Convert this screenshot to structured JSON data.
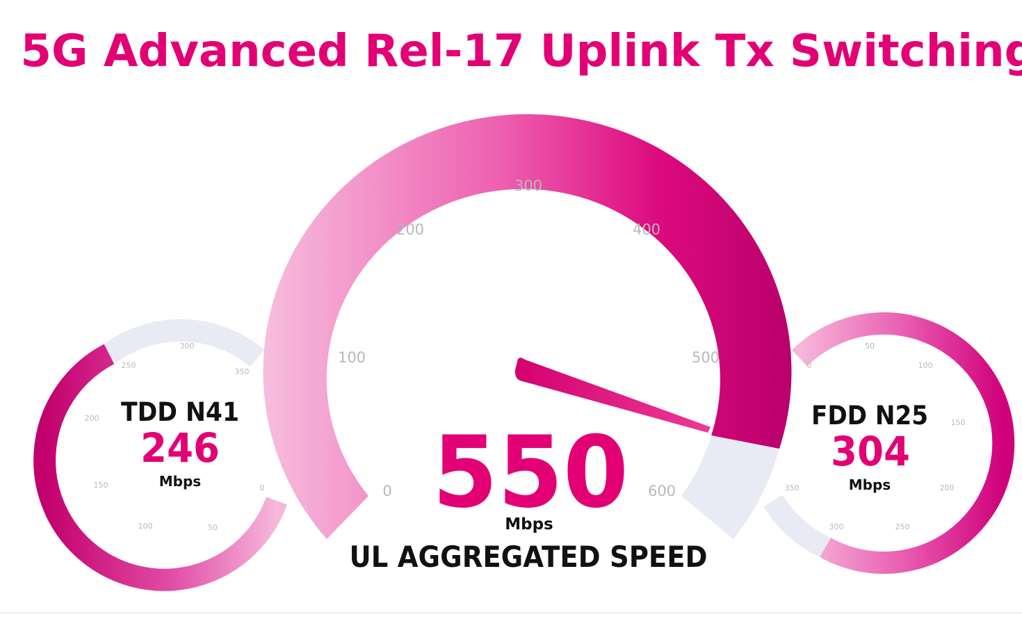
{
  "title": "5G Advanced Rel-17 Uplink Tx Switching",
  "colors": {
    "magenta": "#e20074",
    "magenta_dark": "#c2006c",
    "pink_light": "#f5b6d8",
    "track": "#e8eaf4",
    "tick": "#b8b8b8",
    "text_dark": "#111111"
  },
  "main_gauge": {
    "value": "550",
    "unit": "Mbps",
    "caption": "UL AGGREGATED SPEED",
    "min": 0,
    "max": 600,
    "reading": 550,
    "ticks": [
      "0",
      "100",
      "200",
      "300",
      "400",
      "500",
      "600"
    ]
  },
  "left_gauge": {
    "name": "TDD N41",
    "value": "246",
    "unit": "Mbps",
    "ticks": [
      "0",
      "50",
      "100",
      "150",
      "200",
      "250",
      "300",
      "350"
    ]
  },
  "right_gauge": {
    "name": "FDD N25",
    "value": "304",
    "unit": "Mbps",
    "ticks": [
      "0",
      "50",
      "100",
      "150",
      "200",
      "250",
      "300",
      "350"
    ]
  }
}
